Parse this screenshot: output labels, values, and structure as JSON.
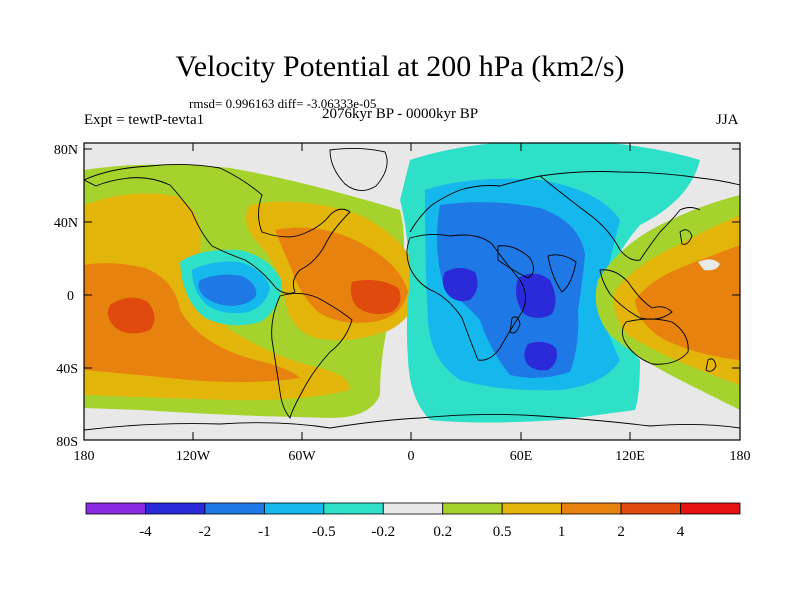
{
  "figure": {
    "title": "Velocity Potential at 200 hPa (km2/s)",
    "stats": "rmsd= 0.996163 diff= -3.06333e-05",
    "experiment": "Expt = tewtP-tevta1",
    "period": "2076kyr BP - 0000kyr BP",
    "season": "JJA"
  },
  "axes": {
    "lat_labels": [
      "80N",
      "40N",
      "0",
      "40S",
      "80S"
    ],
    "lon_labels": [
      "180",
      "120W",
      "60W",
      "0",
      "60E",
      "120E",
      "180"
    ]
  },
  "colorbar": {
    "labels": [
      "-4",
      "-2",
      "-1",
      "-0.5",
      "-0.2",
      "0.2",
      "0.5",
      "1",
      "2",
      "4"
    ],
    "colors": [
      "#8a2be2",
      "#2a2ad8",
      "#1e78e6",
      "#14b8ec",
      "#2ee0c8",
      "#e8e8e8",
      "#a6d22e",
      "#e3b40a",
      "#e8820e",
      "#e04a0c",
      "#e41212"
    ]
  },
  "map_colors": {
    "ocean_background": "#e8e8e8",
    "coastline": "#000000"
  }
}
